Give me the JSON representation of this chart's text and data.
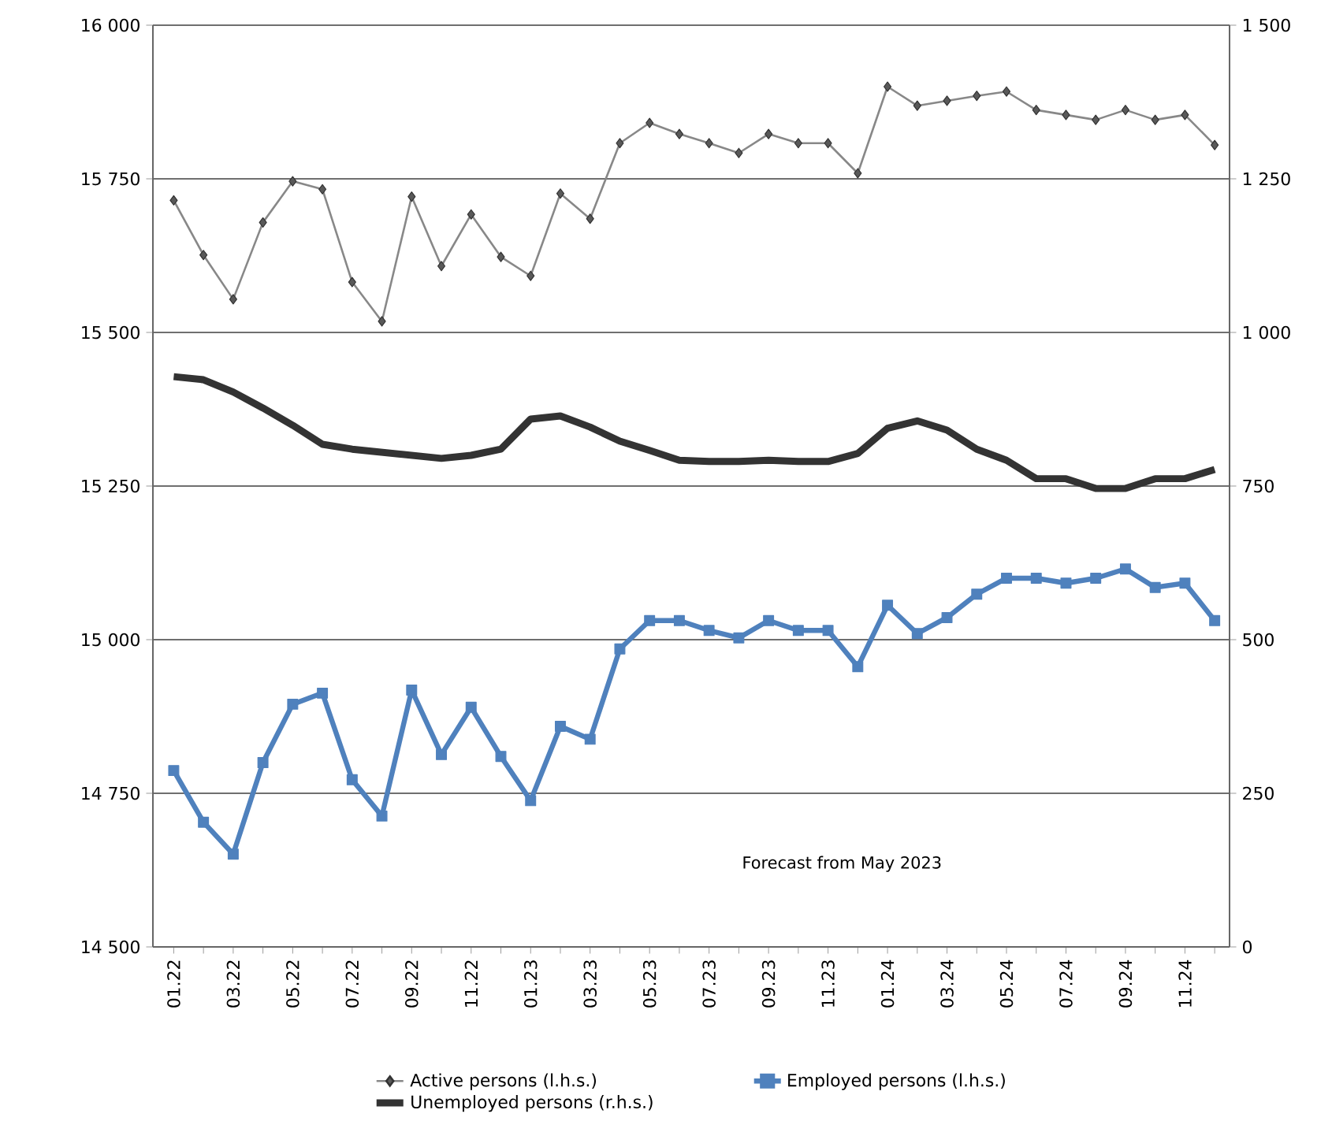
{
  "chart_data": {
    "type": "line",
    "categories": [
      "01.22",
      null,
      "03.22",
      null,
      "05.22",
      null,
      "07.22",
      null,
      "09.22",
      null,
      "11.22",
      null,
      "01.23",
      null,
      "03.23",
      null,
      "05.23",
      null,
      "07.23",
      null,
      "09.23",
      null,
      "11.23",
      null,
      "01.24",
      null,
      "03.24",
      null,
      "05.24",
      null,
      "07.24",
      null,
      "09.24",
      null,
      "11.24",
      null
    ],
    "series": [
      {
        "name": "Active persons (l.h.s.)",
        "color": "#888888",
        "marker": "diamond",
        "values": [
          15715,
          15626,
          15554,
          15679,
          15746,
          15733,
          15582,
          15518,
          15721,
          15608,
          15692,
          15623,
          15592,
          15726,
          15685,
          15808,
          15841,
          15823,
          15808,
          15792,
          15823,
          15808,
          15808,
          15759,
          15900,
          15869,
          15877,
          15885,
          15892,
          15862,
          15854,
          15846,
          15862,
          15846,
          15854,
          15805
        ]
      },
      {
        "name": "Employed persons (l.h.s.)",
        "color": "#4f81bd",
        "marker": "square",
        "values": [
          14787,
          14703,
          14651,
          14800,
          14895,
          14913,
          14772,
          14713,
          14918,
          14813,
          14890,
          14810,
          14738,
          14859,
          14838,
          14985,
          15031,
          15031,
          15015,
          15003,
          15031,
          15015,
          15015,
          14956,
          15056,
          15010,
          15036,
          15074,
          15100,
          15100,
          15092,
          15100,
          15115,
          15085,
          15092,
          15031
        ]
      },
      {
        "name": "Unemployed persons (r.h.s.)",
        "color": "#333333",
        "marker": "none",
        "axis": "y2",
        "values": [
          928,
          923,
          903,
          877,
          849,
          818,
          810,
          805,
          800,
          795,
          800,
          810,
          859,
          864,
          846,
          823,
          808,
          792,
          790,
          790,
          792,
          790,
          790,
          803,
          844,
          856,
          841,
          810,
          792,
          762,
          762,
          746,
          746,
          762,
          762,
          777
        ]
      }
    ],
    "ylim": [
      14500,
      16000
    ],
    "yticks": [
      {
        "value": 14500,
        "label": "14 500"
      },
      {
        "value": 14750,
        "label": "14 750"
      },
      {
        "value": 15000,
        "label": "15 000"
      },
      {
        "value": 15250,
        "label": "15 250"
      },
      {
        "value": 15500,
        "label": "15 500"
      },
      {
        "value": 15750,
        "label": "15 750"
      },
      {
        "value": 16000,
        "label": "16 000"
      }
    ],
    "y2lim": [
      0,
      1500
    ],
    "y2ticks": [
      0,
      250,
      500,
      750,
      {
        "value": 1000,
        "label": "1 000"
      },
      {
        "value": 1250,
        "label": "1 250"
      },
      {
        "value": 1500,
        "label": "1 500"
      }
    ],
    "annotations": [
      "Forecast from May 2023"
    ],
    "grid": "y",
    "legend": "bottom"
  }
}
